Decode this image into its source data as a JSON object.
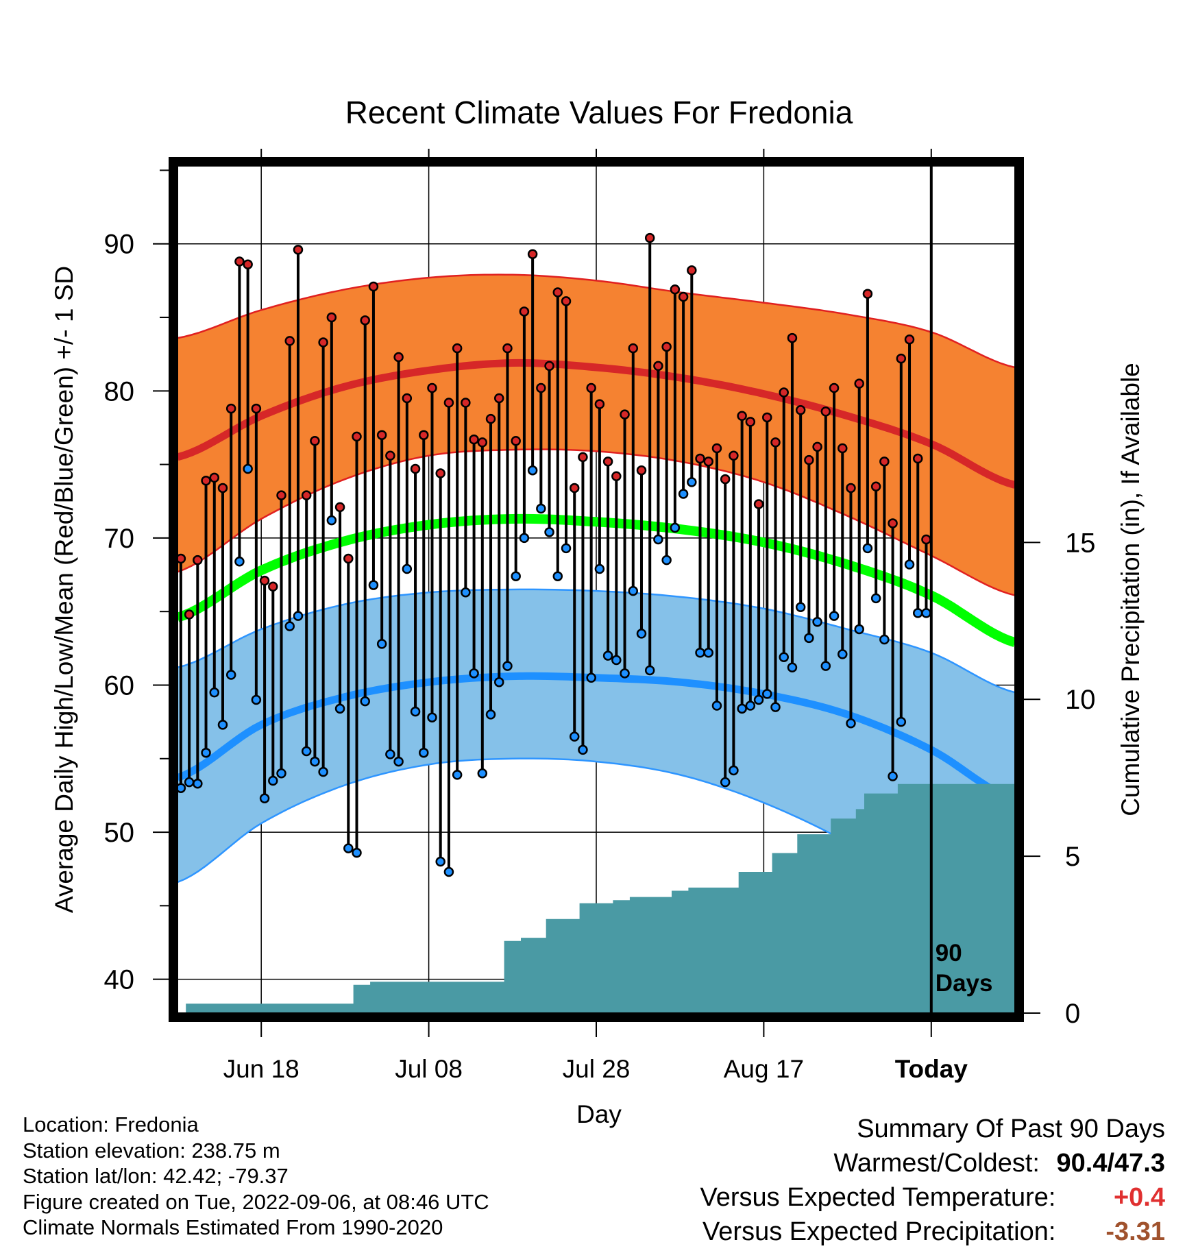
{
  "chart_data": {
    "type": "line",
    "title": "Recent Climate Values For Fredonia",
    "xlabel": "Day",
    "ylabel_left": "Average Daily High/Low/Mean (Red/Blue/Green) +/- 1 SD",
    "ylabel_right": "Cumulative Precipitation (in), If Available",
    "xlim": [
      "2022-06-08",
      "2022-09-16"
    ],
    "ylim_left": [
      37.7,
      95.3
    ],
    "ylim_right": [
      0,
      27
    ],
    "x_ticks": [
      {
        "date": "2022-06-18",
        "label": "Jun 18"
      },
      {
        "date": "2022-07-08",
        "label": "Jul 08"
      },
      {
        "date": "2022-07-28",
        "label": "Jul 28"
      },
      {
        "date": "2022-08-17",
        "label": "Aug 17"
      },
      {
        "date": "2022-09-06",
        "label": "Today"
      }
    ],
    "y_ticks_left": [
      40,
      50,
      60,
      70,
      80,
      90
    ],
    "y_ticks_right": [
      0,
      5,
      10,
      15
    ],
    "today_marker": {
      "date": "2022-09-06",
      "label_line1": "90",
      "label_line2": "Days"
    },
    "colors": {
      "high_band": "#f58231",
      "high_mean": "#d62728",
      "low_band": "#85c1e9",
      "low_mean": "#1e90ff",
      "mean": "#00ff00",
      "precip": "#4a9aa4",
      "band_edge_high": "#e02020",
      "band_edge_low": "#2e95ff"
    },
    "normals": {
      "dates": [
        "2022-06-08",
        "2022-06-18",
        "2022-06-28",
        "2022-07-08",
        "2022-07-18",
        "2022-07-28",
        "2022-08-07",
        "2022-08-17",
        "2022-08-27",
        "2022-09-06",
        "2022-09-16"
      ],
      "high_mean": [
        75.5,
        78.3,
        80.3,
        81.4,
        81.9,
        81.6,
        80.9,
        79.8,
        78.3,
        76.4,
        73.6
      ],
      "high_upper": [
        83.6,
        85.5,
        86.9,
        87.7,
        87.9,
        87.5,
        86.7,
        86.0,
        85.2,
        84.0,
        81.6
      ],
      "high_lower": [
        67.7,
        71.3,
        74.0,
        75.6,
        76.0,
        75.9,
        75.2,
        73.8,
        71.5,
        68.8,
        66.1
      ],
      "low_mean": [
        53.7,
        57.3,
        59.2,
        60.2,
        60.6,
        60.5,
        60.2,
        59.4,
        58.0,
        55.6,
        52.2
      ],
      "low_upper": [
        61.2,
        63.8,
        65.5,
        66.3,
        66.5,
        66.4,
        66.0,
        65.2,
        63.8,
        62.2,
        59.5
      ],
      "low_lower": [
        46.6,
        50.6,
        53.2,
        54.6,
        55.0,
        54.8,
        53.9,
        52.0,
        49.3,
        45.8,
        42.4
      ],
      "mean": [
        64.6,
        67.8,
        69.8,
        70.9,
        71.3,
        71.1,
        70.6,
        69.7,
        68.2,
        66.1,
        62.9
      ]
    },
    "series": [
      {
        "name": "High",
        "start_date": "2022-06-08",
        "values": [
          68.6,
          64.8,
          68.5,
          73.9,
          74.1,
          73.4,
          78.8,
          88.8,
          88.6,
          78.8,
          67.1,
          66.7,
          72.9,
          83.4,
          89.6,
          72.9,
          76.6,
          83.3,
          85.0,
          72.1,
          68.6,
          76.9,
          84.8,
          87.1,
          77.0,
          75.6,
          82.3,
          79.5,
          74.7,
          77.0,
          80.2,
          74.4,
          79.2,
          82.9,
          79.2,
          76.7,
          76.5,
          78.1,
          79.5,
          82.9,
          76.6,
          85.4,
          89.3,
          80.2,
          81.7,
          86.7,
          86.1,
          73.4,
          75.5,
          80.2,
          79.1,
          75.2,
          74.2,
          78.4,
          82.9,
          74.6,
          90.4,
          81.7,
          83.0,
          86.9,
          86.4,
          88.2,
          75.4,
          75.2,
          76.1,
          74.0,
          75.6,
          78.3,
          77.9,
          72.3,
          78.2,
          76.5,
          79.9,
          83.6,
          78.7,
          75.3,
          76.2,
          78.6,
          80.2,
          76.1,
          73.4,
          80.5,
          86.6,
          73.5,
          75.2,
          71.0,
          82.2,
          83.5,
          75.4,
          69.9
        ]
      },
      {
        "name": "Low",
        "start_date": "2022-06-08",
        "values": [
          53.0,
          53.4,
          53.3,
          55.4,
          59.5,
          57.3,
          60.7,
          68.4,
          74.7,
          59.0,
          52.3,
          53.5,
          54.0,
          64.0,
          64.7,
          55.5,
          54.8,
          54.1,
          71.2,
          58.4,
          48.9,
          48.6,
          58.9,
          66.8,
          62.8,
          55.3,
          54.8,
          67.9,
          58.2,
          55.4,
          57.8,
          48.0,
          47.3,
          53.9,
          66.3,
          60.8,
          54.0,
          58.0,
          60.2,
          61.3,
          67.4,
          70.0,
          74.6,
          72.0,
          70.4,
          67.4,
          69.3,
          56.5,
          55.6,
          60.5,
          67.9,
          62.0,
          61.7,
          60.8,
          66.4,
          63.5,
          61.0,
          69.9,
          68.5,
          70.7,
          73.0,
          73.8,
          62.2,
          62.2,
          58.6,
          53.4,
          54.2,
          58.4,
          58.6,
          59.0,
          59.4,
          58.5,
          61.9,
          61.2,
          65.3,
          63.2,
          64.3,
          61.3,
          64.7,
          62.1,
          57.4,
          63.8,
          69.3,
          65.9,
          63.1,
          53.8,
          57.5,
          68.2,
          64.9,
          64.9
        ]
      }
    ],
    "precip_cumulative": [
      {
        "start": "2022-06-09",
        "end": "2022-06-29",
        "value": 0.3
      },
      {
        "start": "2022-06-29",
        "end": "2022-07-01",
        "value": 0.9
      },
      {
        "start": "2022-07-01",
        "end": "2022-07-09",
        "value": 1.0
      },
      {
        "start": "2022-07-09",
        "end": "2022-07-17",
        "value": 1.0
      },
      {
        "start": "2022-07-17",
        "end": "2022-07-19",
        "value": 2.3
      },
      {
        "start": "2022-07-19",
        "end": "2022-07-22",
        "value": 2.4
      },
      {
        "start": "2022-07-22",
        "end": "2022-07-26",
        "value": 3.0
      },
      {
        "start": "2022-07-26",
        "end": "2022-07-30",
        "value": 3.5
      },
      {
        "start": "2022-07-30",
        "end": "2022-08-01",
        "value": 3.6
      },
      {
        "start": "2022-08-01",
        "end": "2022-08-06",
        "value": 3.7
      },
      {
        "start": "2022-08-06",
        "end": "2022-08-08",
        "value": 3.9
      },
      {
        "start": "2022-08-08",
        "end": "2022-08-14",
        "value": 4.0
      },
      {
        "start": "2022-08-14",
        "end": "2022-08-18",
        "value": 4.5
      },
      {
        "start": "2022-08-18",
        "end": "2022-08-21",
        "value": 5.1
      },
      {
        "start": "2022-08-21",
        "end": "2022-08-25",
        "value": 5.7
      },
      {
        "start": "2022-08-25",
        "end": "2022-08-28",
        "value": 6.2
      },
      {
        "start": "2022-08-28",
        "end": "2022-08-29",
        "value": 6.5
      },
      {
        "start": "2022-08-29",
        "end": "2022-09-02",
        "value": 7.0
      },
      {
        "start": "2022-09-02",
        "end": "2022-09-16",
        "value": 7.3
      }
    ]
  },
  "info": {
    "location": "Location: Fredonia",
    "elevation": "Station elevation: 238.75 m",
    "latlon": "Station lat/lon: 42.42; -79.37",
    "created": "Figure created on Tue, 2022-09-06, at 08:46 UTC",
    "normals": "Climate Normals Estimated From 1990-2020"
  },
  "summary": {
    "heading": "Summary Of Past 90 Days",
    "warmest_label": "Warmest/Coldest:",
    "warmest_value": "90.4/47.3",
    "temp_label": "Versus Expected Temperature:",
    "temp_value": "+0.4",
    "temp_color": "#e03030",
    "precip_label": "Versus Expected Precipitation:",
    "precip_value": "-3.31",
    "precip_color": "#a0522d"
  }
}
